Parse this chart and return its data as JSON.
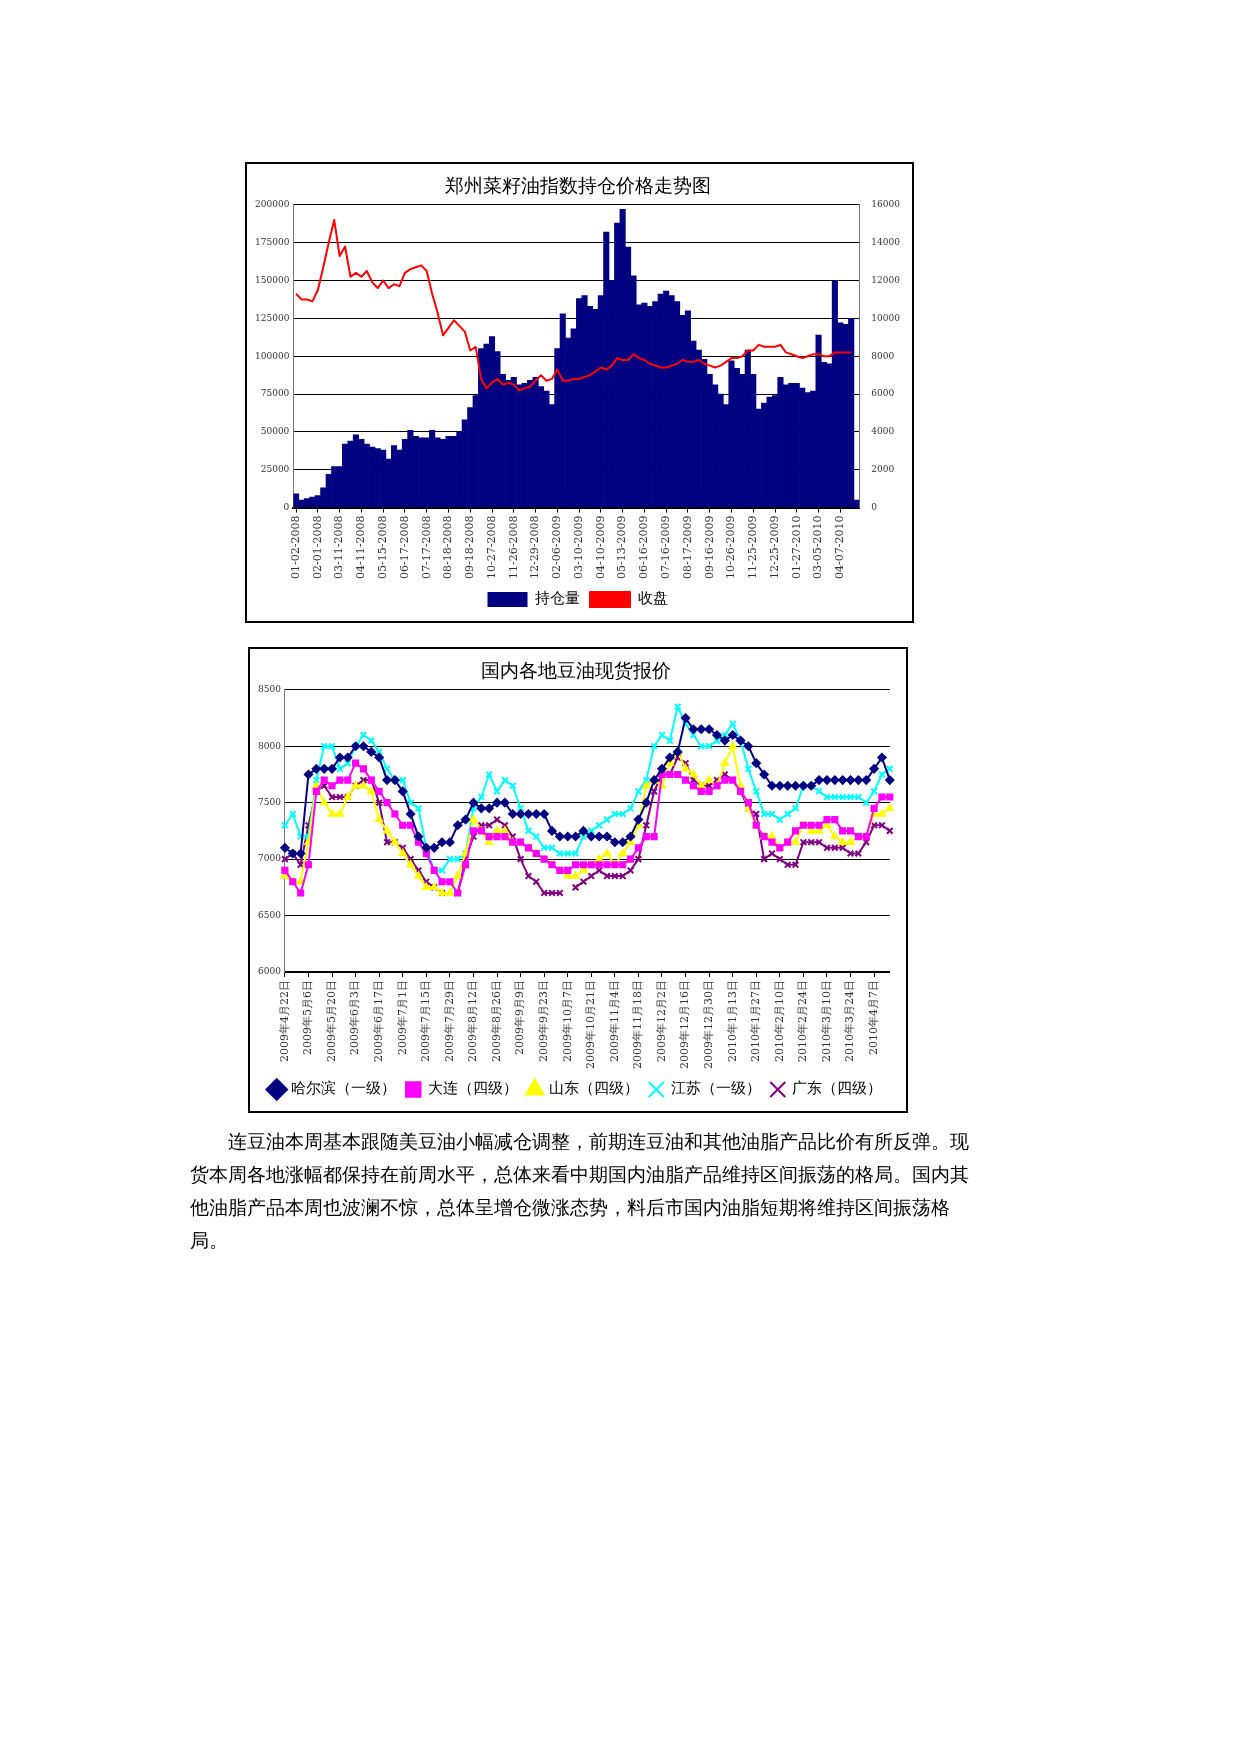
{
  "chart_data": [
    {
      "type": "bar",
      "title": "郑州菜籽油指数持仓价格走势图",
      "categories": [
        "01-02-2008",
        null,
        null,
        null,
        "02-01-2008",
        null,
        null,
        null,
        "03-11-2008",
        null,
        null,
        null,
        "04-11-2008",
        null,
        null,
        null,
        "05-15-2008",
        null,
        null,
        null,
        "06-17-2008",
        null,
        null,
        null,
        "07-17-2008",
        null,
        null,
        null,
        "08-18-2008",
        null,
        null,
        null,
        "09-18-2008",
        null,
        null,
        null,
        "10-27-2008",
        null,
        null,
        null,
        "11-26-2008",
        null,
        null,
        null,
        "12-29-2008",
        null,
        null,
        null,
        "02-06-2009",
        null,
        null,
        null,
        "03-10-2009",
        null,
        null,
        null,
        "04-10-2009",
        null,
        null,
        null,
        "05-13-2009",
        null,
        null,
        null,
        "06-16-2009",
        null,
        null,
        null,
        "07-16-2009",
        null,
        null,
        null,
        "08-17-2009",
        null,
        null,
        null,
        "09-16-2009",
        null,
        null,
        null,
        "10-26-2009",
        null,
        null,
        null,
        "11-25-2009",
        null,
        null,
        null,
        "12-25-2009",
        null,
        null,
        null,
        "01-27-2010",
        null,
        null,
        null,
        "03-05-2010",
        null,
        null,
        null,
        "04-07-2010",
        null,
        null,
        null
      ],
      "series": [
        {
          "name": "持仓量",
          "type": "bar",
          "color": "#000080",
          "values": [
            9000,
            5000,
            6000,
            7000,
            8000,
            13000,
            22000,
            27000,
            27000,
            42000,
            44000,
            48000,
            45000,
            42000,
            40000,
            39000,
            38000,
            32000,
            41000,
            38000,
            45000,
            51000,
            47000,
            46000,
            46000,
            51000,
            46000,
            45000,
            47000,
            47000,
            50000,
            58000,
            66000,
            74000,
            105000,
            108000,
            113000,
            103000,
            88000,
            84000,
            86000,
            81000,
            82000,
            84000,
            86000,
            80000,
            77000,
            68000,
            105000,
            128000,
            112000,
            118000,
            138000,
            140000,
            133000,
            131000,
            140000,
            182000,
            150000,
            188000,
            197000,
            172000,
            153000,
            134000,
            135000,
            133000,
            136000,
            141000,
            143000,
            140000,
            136000,
            127000,
            130000,
            110000,
            104000,
            98000,
            88000,
            81000,
            75000,
            68000,
            97000,
            92000,
            88000,
            104000,
            88000,
            65000,
            69000,
            73000,
            74000,
            86000,
            81000,
            82000,
            82000,
            79000,
            76000,
            77000,
            114000,
            96000,
            95000,
            150000,
            122000,
            121000,
            125000,
            5000
          ]
        },
        {
          "name": "收盘",
          "type": "line",
          "axis": "y2",
          "color": "#ff0000",
          "marker": "none",
          "values": [
            11300,
            11000,
            11000,
            10900,
            11500,
            12700,
            14000,
            15200,
            13300,
            13800,
            12200,
            12400,
            12200,
            12500,
            11900,
            11600,
            12000,
            11600,
            11800,
            11700,
            12400,
            12600,
            12700,
            12800,
            12500,
            11300,
            10300,
            9100,
            9500,
            9900,
            9600,
            9300,
            8300,
            8500,
            6800,
            6300,
            6600,
            6800,
            6500,
            6600,
            6500,
            6200,
            6300,
            6400,
            6700,
            7000,
            6700,
            6800,
            7300,
            6700,
            6700,
            6800,
            6800,
            6900,
            7000,
            7200,
            7400,
            7300,
            7500,
            7900,
            7800,
            7800,
            8100,
            7900,
            7800,
            7600,
            7500,
            7400,
            7400,
            7500,
            7600,
            7800,
            7700,
            7700,
            7800,
            7600,
            7500,
            7400,
            7500,
            7700,
            7900,
            7900,
            8000,
            8300,
            8300,
            8600,
            8500,
            8500,
            8500,
            8600,
            8200,
            8100,
            8000,
            7900,
            8000,
            8100,
            8100,
            8000,
            8000,
            8200,
            8200,
            8200,
            8200,
            null
          ]
        }
      ],
      "ylim": [
        0,
        200000
      ],
      "yticks": [
        0,
        25000,
        50000,
        75000,
        100000,
        125000,
        150000,
        175000,
        200000
      ],
      "y2lim": [
        0,
        16000
      ],
      "y2ticks": [
        0,
        2000,
        4000,
        6000,
        8000,
        10000,
        12000,
        14000,
        16000
      ],
      "grid": "y",
      "legend": "bottom"
    },
    {
      "type": "line",
      "title": "国内各地豆油现货报价",
      "categories": [
        "2009年4月22日",
        null,
        null,
        "2009年5月6日",
        null,
        null,
        "2009年5月20日",
        null,
        null,
        "2009年6月3日",
        null,
        null,
        "2009年6月17日",
        null,
        null,
        "2009年7月1日",
        null,
        null,
        "2009年7月15日",
        null,
        null,
        "2009年7月29日",
        null,
        null,
        "2009年8月12日",
        null,
        null,
        "2009年8月26日",
        null,
        null,
        "2009年9月9日",
        null,
        null,
        "2009年9月23日",
        null,
        null,
        "2009年10月7日",
        null,
        null,
        "2009年10月21日",
        null,
        null,
        "2009年11月4日",
        null,
        null,
        "2009年11月18日",
        null,
        null,
        "2009年12月2日",
        null,
        null,
        "2009年12月16日",
        null,
        null,
        "2009年12月30日",
        null,
        null,
        "2010年1月13日",
        null,
        null,
        "2010年1月27日",
        null,
        null,
        "2010年2月10日",
        null,
        null,
        "2010年2月24日",
        null,
        null,
        "2010年3月10日",
        null,
        null,
        "2010年3月24日",
        null,
        null,
        "2010年4月7日",
        null,
        null
      ],
      "series": [
        {
          "name": "哈尔滨（一级）",
          "color": "#000080",
          "marker": "diamond",
          "values": [
            7100,
            7050,
            7050,
            7750,
            7800,
            7800,
            7800,
            7900,
            7900,
            8000,
            8000,
            7950,
            7900,
            7700,
            7700,
            7600,
            7400,
            7200,
            7100,
            7100,
            7150,
            7150,
            7300,
            7350,
            7500,
            7450,
            7450,
            7500,
            7500,
            7400,
            7400,
            7400,
            7400,
            7400,
            7250,
            7200,
            7200,
            7200,
            7250,
            7200,
            7200,
            7200,
            7150,
            7150,
            7200,
            7350,
            7500,
            7700,
            7800,
            7900,
            7950,
            8250,
            8150,
            8150,
            8150,
            8100,
            8050,
            8100,
            8050,
            8000,
            7850,
            7750,
            7650,
            7650,
            7650,
            7650,
            7650,
            7650,
            7700,
            7700,
            7700,
            7700,
            7700,
            7700,
            7700,
            7800,
            7900,
            7700
          ]
        },
        {
          "name": "大连（四级）",
          "color": "#ff00ff",
          "marker": "square",
          "values": [
            6900,
            6800,
            6700,
            6950,
            7600,
            7700,
            7650,
            7700,
            7700,
            7850,
            7800,
            7700,
            7600,
            7500,
            7400,
            7300,
            7300,
            7150,
            7050,
            6900,
            6800,
            6800,
            6700,
            6950,
            7250,
            7250,
            7200,
            7200,
            7200,
            7150,
            7150,
            7100,
            7050,
            7000,
            6950,
            6900,
            6900,
            6950,
            6950,
            6950,
            6950,
            6950,
            6950,
            6950,
            7000,
            7100,
            7200,
            7200,
            7750,
            7750,
            7750,
            7700,
            7650,
            7600,
            7600,
            7650,
            7700,
            7700,
            7600,
            7500,
            7300,
            7200,
            7150,
            7100,
            7150,
            7250,
            7300,
            7300,
            7300,
            7350,
            7350,
            7250,
            7250,
            7200,
            7200,
            7450,
            7550,
            7550
          ]
        },
        {
          "name": "山东（四级）",
          "color": "#ffff00",
          "marker": "triangle",
          "values": [
            6850,
            6800,
            6800,
            7150,
            7650,
            7500,
            7400,
            7400,
            7550,
            7650,
            7650,
            7600,
            7350,
            7250,
            7150,
            7050,
            6950,
            6850,
            6750,
            6750,
            6700,
            6700,
            6850,
            7050,
            7350,
            7250,
            7150,
            7250,
            7250,
            7150,
            7150,
            7100,
            7050,
            7000,
            6950,
            6900,
            6850,
            6850,
            6900,
            6950,
            7000,
            7050,
            6950,
            7050,
            7150,
            7300,
            7650,
            7700,
            7650,
            7850,
            7950,
            7800,
            7750,
            7650,
            7700,
            7650,
            7850,
            8000,
            7650,
            7450,
            7300,
            7200,
            7200,
            7100,
            7150,
            7150,
            7300,
            7250,
            7250,
            7300,
            7200,
            7150,
            7150,
            7200,
            7200,
            7400,
            7400,
            7450
          ]
        },
        {
          "name": "江苏（一级）",
          "color": "#00ffff",
          "marker": "cross",
          "values": [
            7300,
            7400,
            7200,
            7200,
            7700,
            8000,
            8000,
            7800,
            7850,
            8000,
            8100,
            8050,
            7950,
            7800,
            7700,
            7700,
            7500,
            7450,
            7100,
            6900,
            6900,
            7000,
            7000,
            7050,
            7450,
            7550,
            7750,
            7600,
            7700,
            7650,
            7450,
            7250,
            7200,
            7100,
            7100,
            7050,
            7050,
            7050,
            7200,
            7250,
            7300,
            7350,
            7400,
            7400,
            7450,
            7600,
            7700,
            8000,
            8100,
            8050,
            8350,
            8200,
            8100,
            8000,
            8000,
            8050,
            8100,
            8200,
            8050,
            7800,
            7600,
            7400,
            7400,
            7350,
            7400,
            7450,
            7650,
            7650,
            7600,
            7550,
            7550,
            7550,
            7550,
            7550,
            7500,
            7600,
            7750,
            7800
          ]
        },
        {
          "name": "广东（四级）",
          "color": "#800080",
          "marker": "cross",
          "values": [
            7000,
            7050,
            6950,
            7300,
            7600,
            7650,
            7550,
            7550,
            7550,
            7650,
            7700,
            7700,
            7500,
            7150,
            7150,
            7100,
            7000,
            6900,
            6800,
            6750,
            6700,
            null,
            6700,
            7000,
            7200,
            7300,
            7300,
            7350,
            7300,
            7200,
            7000,
            6850,
            6800,
            6700,
            6700,
            6700,
            null,
            6750,
            6800,
            6850,
            6900,
            6850,
            6850,
            6850,
            6900,
            7000,
            7300,
            7600,
            7750,
            7750,
            7900,
            7850,
            7700,
            7650,
            7650,
            7700,
            7750,
            7700,
            7600,
            7450,
            7400,
            7000,
            7050,
            7000,
            6950,
            6950,
            7150,
            7150,
            7150,
            7100,
            7100,
            7100,
            7050,
            7050,
            7150,
            7300,
            7300,
            7250
          ]
        }
      ],
      "ylim": [
        6000,
        8500
      ],
      "yticks": [
        6000,
        6500,
        7000,
        7500,
        8000,
        8500
      ],
      "grid": "y",
      "legend": "bottom",
      "annotations": [
        "连豆油本周基本跟随美豆油小幅减仓调整，前期连豆油和其他油脂产品比价有所反弹。现货本周各地涨幅都保持在前周水平，总体来看中期国内油脂产品维持区间振荡的格局。国内其他油脂产品本周也波澜不惊，总体呈增仓微涨态势，料后市国内油脂短期将维持区间振荡格局。"
      ]
    }
  ]
}
